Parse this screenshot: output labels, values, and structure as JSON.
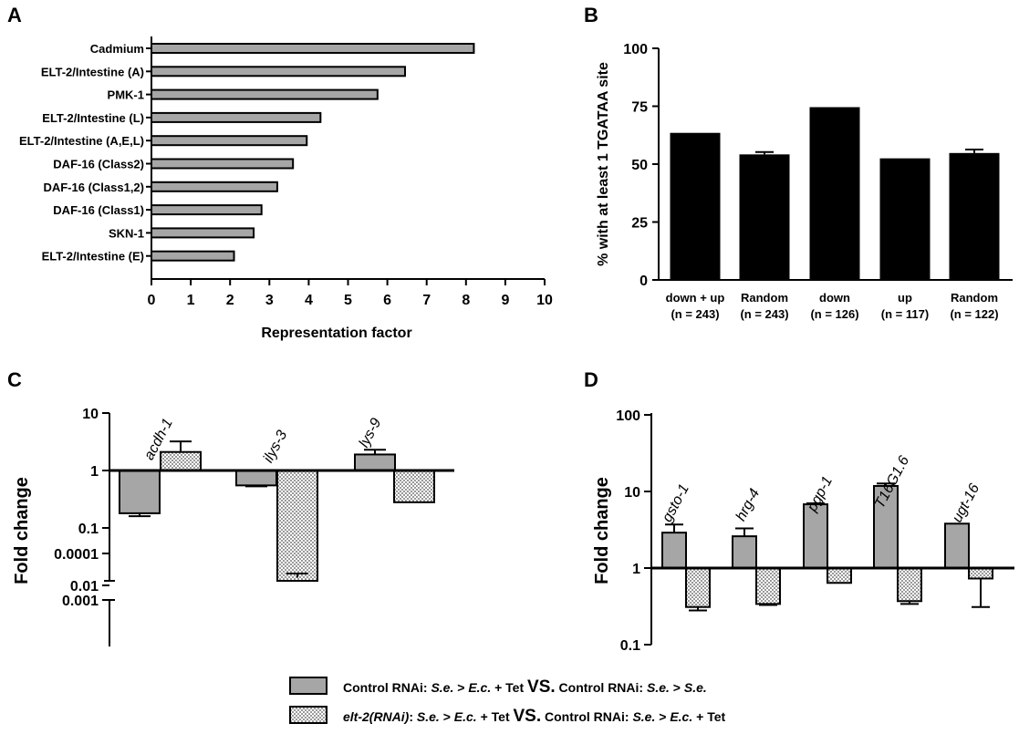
{
  "panels": {
    "a": "A",
    "b": "B",
    "c": "C",
    "d": "D"
  },
  "chart_data": [
    {
      "id": "A",
      "type": "bar",
      "orientation": "horizontal",
      "categories": [
        "Cadmium",
        "ELT-2/Intestine (A)",
        "PMK-1",
        "ELT-2/Intestine (L)",
        "ELT-2/Intestine (A,E,L)",
        "DAF-16 (Class2)",
        "DAF-16 (Class1,2)",
        "DAF-16 (Class1)",
        "SKN-1",
        "ELT-2/Intestine (E)"
      ],
      "values": [
        8.2,
        6.45,
        5.75,
        4.3,
        3.95,
        3.6,
        3.2,
        2.8,
        2.6,
        2.1
      ],
      "xlabel": "Representation factor",
      "xlim": [
        0,
        10
      ],
      "xticks": [
        "0",
        "1",
        "2",
        "3",
        "4",
        "5",
        "6",
        "7",
        "8",
        "9",
        "10"
      ],
      "bar_color": "#a6a6a6"
    },
    {
      "id": "B",
      "type": "bar",
      "categories": [
        {
          "line1": "down + up",
          "line2": "(n = 243)"
        },
        {
          "line1": "Random",
          "line2": "(n = 243)"
        },
        {
          "line1": "down",
          "line2": "(n = 126)"
        },
        {
          "line1": "up",
          "line2": "(n = 117)"
        },
        {
          "line1": "Random",
          "line2": "(n = 122)"
        }
      ],
      "values": [
        63.5,
        54.2,
        74.6,
        52.5,
        54.8
      ],
      "errors": [
        0,
        1.0,
        0,
        0,
        1.5
      ],
      "ylabel": "% with at least 1 TGATAA site",
      "ylim": [
        0,
        100
      ],
      "yticks": [
        "0",
        "25",
        "50",
        "75",
        "100"
      ],
      "bar_color": "#000000"
    },
    {
      "id": "C",
      "type": "bar",
      "ylabel": "Fold change",
      "yscale": "log (broken axis)",
      "yticks_upper": [
        "10",
        "1",
        "0.1",
        "0.01"
      ],
      "yticks_lower": [
        "0.001",
        "0.0001"
      ],
      "genes": [
        "acdh-1",
        "ilys-3",
        "lys-9"
      ],
      "series": [
        {
          "name": "Control RNAi: S.e. > E.c. + Tet VS. Control RNAi: S.e. > S.e.",
          "values": [
            0.18,
            0.55,
            1.9
          ],
          "errors_upper": [
            0.16,
            0.53,
            2.3
          ],
          "error_direction": [
            "down",
            "down",
            "up"
          ]
        },
        {
          "name": "elt-2(RNAi): S.e. > E.c. + Tet VS. Control RNAi: S.e. > E.c. + Tet",
          "values": [
            2.1,
            0.00033,
            0.28
          ],
          "errors_upper": [
            3.2,
            0.00027,
            0.28
          ],
          "error_direction": [
            "up",
            "down",
            "none"
          ]
        }
      ]
    },
    {
      "id": "D",
      "type": "bar",
      "ylabel": "Fold change",
      "yscale": "log",
      "ylim": [
        0.1,
        100
      ],
      "yticks": [
        "100",
        "10",
        "1",
        "0.1"
      ],
      "genes": [
        "gsto-1",
        "hrg-4",
        "pgp-1",
        "T16G1.6",
        "ugt-16"
      ],
      "series": [
        {
          "name": "Control RNAi: S.e. > E.c. + Tet VS. Control RNAi: S.e. > S.e.",
          "values": [
            2.9,
            2.6,
            6.8,
            11.8,
            3.8
          ],
          "errors": [
            3.7,
            3.3,
            7.0,
            12.7,
            3.8
          ],
          "error_direction": [
            "up",
            "up",
            "up",
            "up",
            "none"
          ]
        },
        {
          "name": "elt-2(RNAi): S.e. > E.c. + Tet VS. Control RNAi: S.e. > E.c. + Tet",
          "values": [
            0.31,
            0.34,
            0.64,
            0.37,
            0.73
          ],
          "errors": [
            0.28,
            0.33,
            0.64,
            0.34,
            0.31
          ],
          "error_direction": [
            "down",
            "down",
            "none",
            "down",
            "down"
          ]
        }
      ]
    }
  ],
  "legend": {
    "row1": {
      "pre": "Control RNAi: ",
      "it1": "S.e.",
      "mid1": " > ",
      "it2": "E.c.",
      "mid2": " + Tet ",
      "vs": "VS.",
      "post": " Control RNAi: ",
      "it3": "S.e.",
      "mid3": " > ",
      "it4": "S.e."
    },
    "row2": {
      "it0": "elt-2(RNAi)",
      "pre": ": ",
      "it1": "S.e.",
      "mid1": " > ",
      "it2": "E.c.",
      "mid2": " + Tet ",
      "vs": "VS.",
      "post": " Control RNAi: ",
      "it3": "S.e.",
      "mid3": " > ",
      "it4": "E.c.",
      "tail": " + Tet"
    }
  },
  "colors": {
    "gray_bar": "#a6a6a6",
    "black_bar": "#000000"
  }
}
